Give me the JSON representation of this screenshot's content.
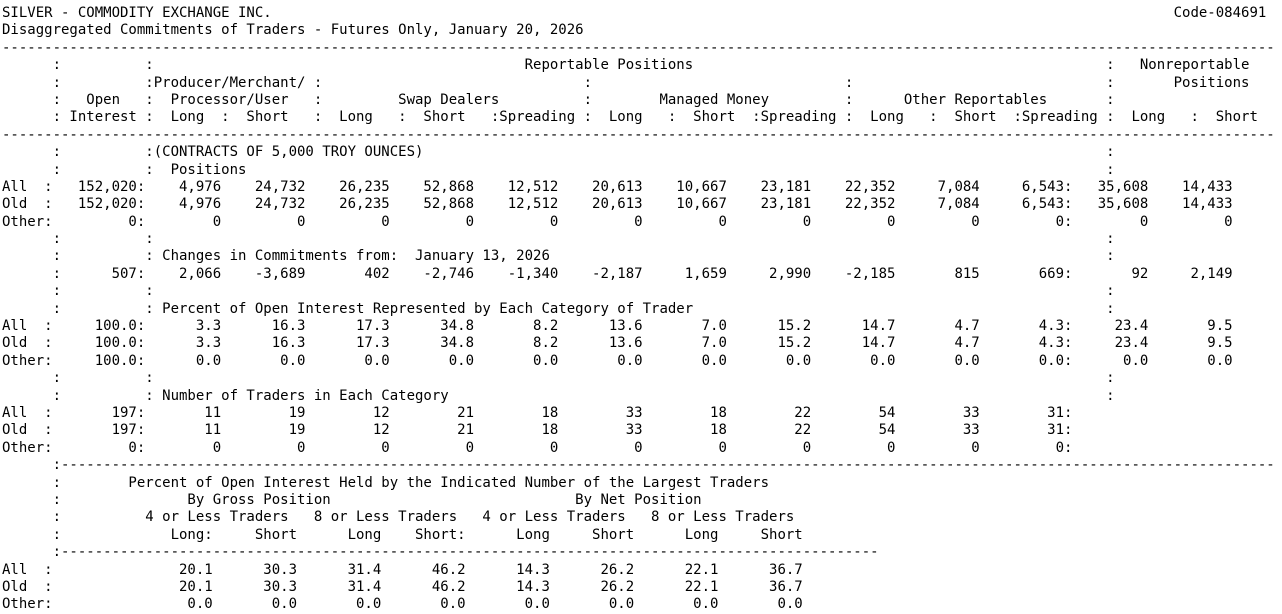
{
  "report": {
    "title": "SILVER - COMMODITY EXCHANGE INC.",
    "code": "Code-084691",
    "subtitle": "Disaggregated Commitments of Traders - Futures Only, January 20, 2026",
    "colors": {
      "text": "#000000",
      "background": "#ffffff"
    },
    "header": {
      "reportable": "Reportable Positions",
      "nonreportable_line1": "Nonreportable",
      "nonreportable_line2": "Positions",
      "producer_line1": "Producer/Merchant/",
      "producer_line2": "Processor/User",
      "open": "Open",
      "interest": "Interest",
      "swap_dealers": "Swap Dealers",
      "managed_money": "Managed Money",
      "other_reportables": "Other Reportables",
      "long": "Long",
      "short": "Short",
      "spreading": "Spreading"
    },
    "sections": {
      "positions": {
        "unit_note": "(CONTRACTS OF 5,000 TROY OUNCES)",
        "title": "Positions",
        "rows": [
          {
            "label": "All",
            "open_interest": "152,020",
            "values": [
              "4,976",
              "24,732",
              "26,235",
              "52,868",
              "12,512",
              "20,613",
              "10,667",
              "23,181",
              "22,352",
              "7,084",
              "6,543"
            ],
            "nonreportable": [
              "35,608",
              "14,433"
            ]
          },
          {
            "label": "Old",
            "open_interest": "152,020",
            "values": [
              "4,976",
              "24,732",
              "26,235",
              "52,868",
              "12,512",
              "20,613",
              "10,667",
              "23,181",
              "22,352",
              "7,084",
              "6,543"
            ],
            "nonreportable": [
              "35,608",
              "14,433"
            ]
          },
          {
            "label": "Other",
            "open_interest": "0",
            "values": [
              "0",
              "0",
              "0",
              "0",
              "0",
              "0",
              "0",
              "0",
              "0",
              "0",
              "0"
            ],
            "nonreportable": [
              "0",
              "0"
            ]
          }
        ]
      },
      "changes": {
        "title": "Changes in Commitments from:",
        "date": "January 13, 2026",
        "row": {
          "label": "",
          "open_interest": "507",
          "values": [
            "2,066",
            "-3,689",
            "402",
            "-2,746",
            "-1,340",
            "-2,187",
            "1,659",
            "2,990",
            "-2,185",
            "815",
            "669"
          ],
          "nonreportable": [
            "92",
            "2,149"
          ]
        }
      },
      "percent": {
        "title": "Percent of Open Interest Represented by Each Category of Trader",
        "rows": [
          {
            "label": "All",
            "open_interest": "100.0",
            "values": [
              "3.3",
              "16.3",
              "17.3",
              "34.8",
              "8.2",
              "13.6",
              "7.0",
              "15.2",
              "14.7",
              "4.7",
              "4.3"
            ],
            "nonreportable": [
              "23.4",
              "9.5"
            ]
          },
          {
            "label": "Old",
            "open_interest": "100.0",
            "values": [
              "3.3",
              "16.3",
              "17.3",
              "34.8",
              "8.2",
              "13.6",
              "7.0",
              "15.2",
              "14.7",
              "4.7",
              "4.3"
            ],
            "nonreportable": [
              "23.4",
              "9.5"
            ]
          },
          {
            "label": "Other",
            "open_interest": "100.0",
            "values": [
              "0.0",
              "0.0",
              "0.0",
              "0.0",
              "0.0",
              "0.0",
              "0.0",
              "0.0",
              "0.0",
              "0.0",
              "0.0"
            ],
            "nonreportable": [
              "0.0",
              "0.0"
            ]
          }
        ]
      },
      "traders": {
        "title": "Number of Traders in Each Category",
        "rows": [
          {
            "label": "All",
            "open_interest": "197",
            "values": [
              "11",
              "19",
              "12",
              "21",
              "18",
              "33",
              "18",
              "22",
              "54",
              "33",
              "31"
            ],
            "nonreportable": [
              "",
              ""
            ]
          },
          {
            "label": "Old",
            "open_interest": "197",
            "values": [
              "11",
              "19",
              "12",
              "21",
              "18",
              "33",
              "18",
              "22",
              "54",
              "33",
              "31"
            ],
            "nonreportable": [
              "",
              ""
            ]
          },
          {
            "label": "Other",
            "open_interest": "0",
            "values": [
              "0",
              "0",
              "0",
              "0",
              "0",
              "0",
              "0",
              "0",
              "0",
              "0",
              "0"
            ],
            "nonreportable": [
              "",
              ""
            ]
          }
        ]
      },
      "concentration": {
        "title": "Percent of Open Interest Held by the Indicated Number of the Largest Traders",
        "gross_label": "By Gross Position",
        "net_label": "By Net Position",
        "group4_label": "4 or Less Traders",
        "group8_label": "8 or Less Traders",
        "col_long": "Long",
        "col_short": "Short",
        "rows": [
          {
            "label": "All",
            "values": [
              "20.1",
              "30.3",
              "31.4",
              "46.2",
              "14.3",
              "26.2",
              "22.1",
              "36.7"
            ]
          },
          {
            "label": "Old",
            "values": [
              "20.1",
              "30.3",
              "31.4",
              "46.2",
              "14.3",
              "26.2",
              "22.1",
              "36.7"
            ]
          },
          {
            "label": "Other",
            "values": [
              "0.0",
              "0.0",
              "0.0",
              "0.0",
              "0.0",
              "0.0",
              "0.0",
              "0.0"
            ]
          }
        ]
      }
    }
  }
}
